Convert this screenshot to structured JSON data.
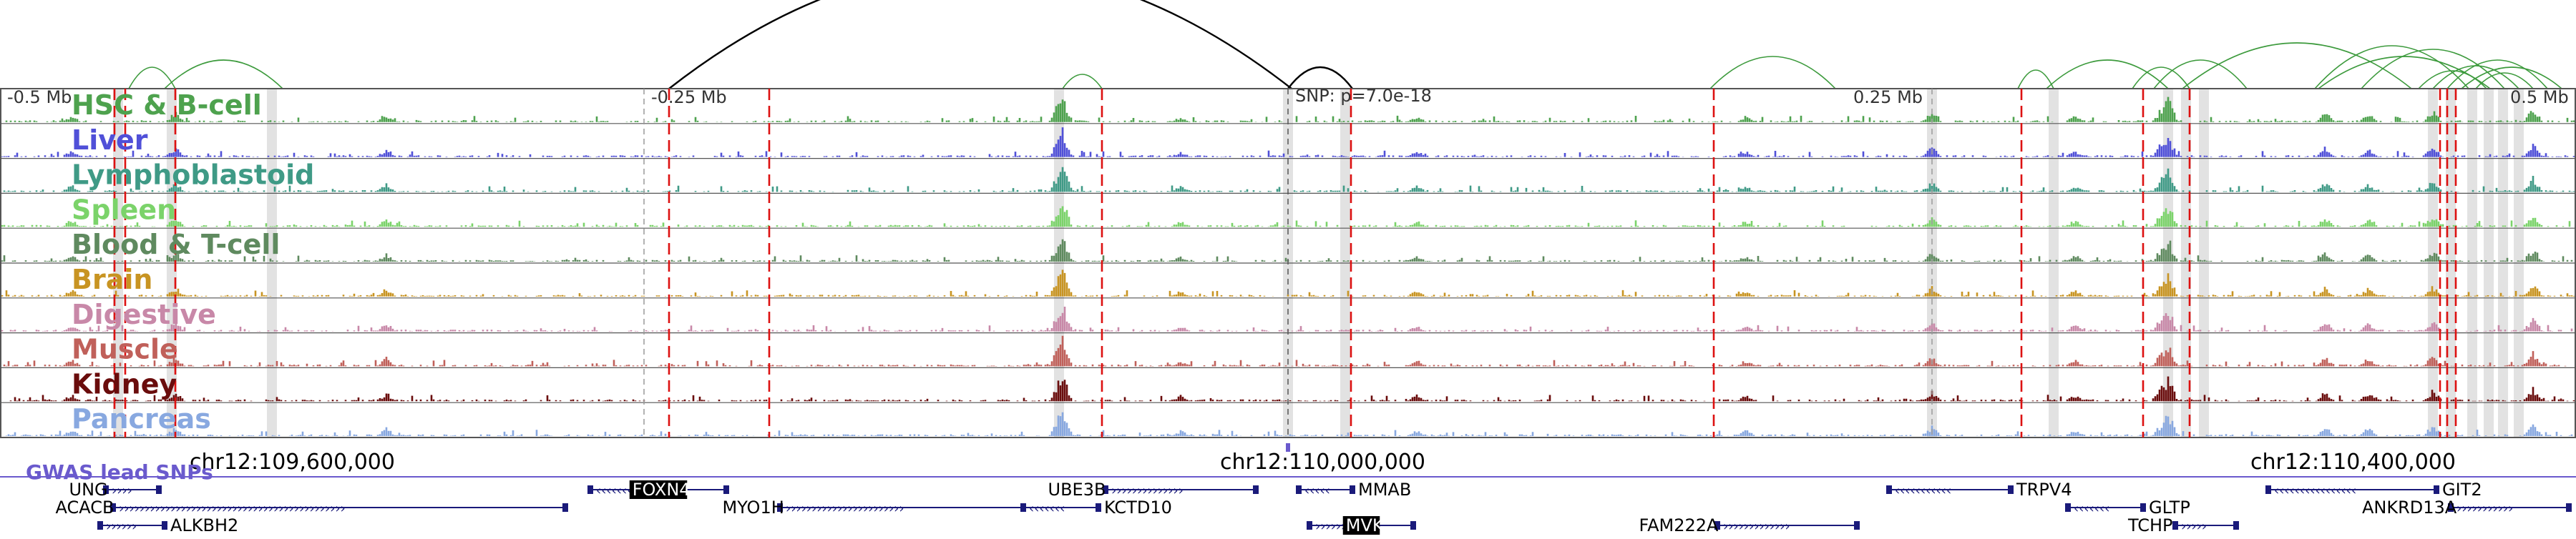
{
  "snp_label": "SNP: p=7.0e-18",
  "scale_labels": [
    "-0.5 Mb",
    "-0.25 Mb",
    "0.25 Mb",
    "0.5 Mb"
  ],
  "coordinate_labels": [
    "chr12:109,600,000",
    "chr12:110,000,000",
    "chr12:110,400,000"
  ],
  "gwas_label": "GWAS lead SNPs",
  "tracks": [
    {
      "label": "HSC & B-cell",
      "color": "#4ea24e"
    },
    {
      "label": "Liver",
      "color": "#5050d8"
    },
    {
      "label": "Lymphoblastoid",
      "color": "#3f9a86"
    },
    {
      "label": "Spleen",
      "color": "#7bd36a"
    },
    {
      "label": "Blood & T-cell",
      "color": "#5f8a5f"
    },
    {
      "label": "Brain",
      "color": "#c89422"
    },
    {
      "label": "Digestive",
      "color": "#c888a8"
    },
    {
      "label": "Muscle",
      "color": "#c0605a"
    },
    {
      "label": "Kidney",
      "color": "#6a0c0c"
    },
    {
      "label": "Pancreas",
      "color": "#88a8e0"
    }
  ],
  "genes": [
    {
      "name": "UNG",
      "highlight": false
    },
    {
      "name": "ACACB",
      "highlight": false
    },
    {
      "name": "ALKBH2",
      "highlight": false
    },
    {
      "name": "FOXN4",
      "highlight": true
    },
    {
      "name": "MYO1H",
      "highlight": false
    },
    {
      "name": "UBE3B",
      "highlight": false
    },
    {
      "name": "KCTD10",
      "highlight": false
    },
    {
      "name": "MMAB",
      "highlight": false
    },
    {
      "name": "MVK",
      "highlight": true
    },
    {
      "name": "FAM222A",
      "highlight": false
    },
    {
      "name": "TRPV4",
      "highlight": false
    },
    {
      "name": "GLTP",
      "highlight": false
    },
    {
      "name": "TCHP",
      "highlight": false
    },
    {
      "name": "GIT2",
      "highlight": false
    },
    {
      "name": "ANKRD13A",
      "highlight": false
    }
  ],
  "colors": {
    "frame": "#555555",
    "red_line": "#dd1111",
    "gray_band": "#d8d8d8",
    "loop_main": "#000000",
    "loop_green": "#3c9a3c",
    "gwas": "#6a5acd",
    "gene": "#1a1a7a"
  }
}
